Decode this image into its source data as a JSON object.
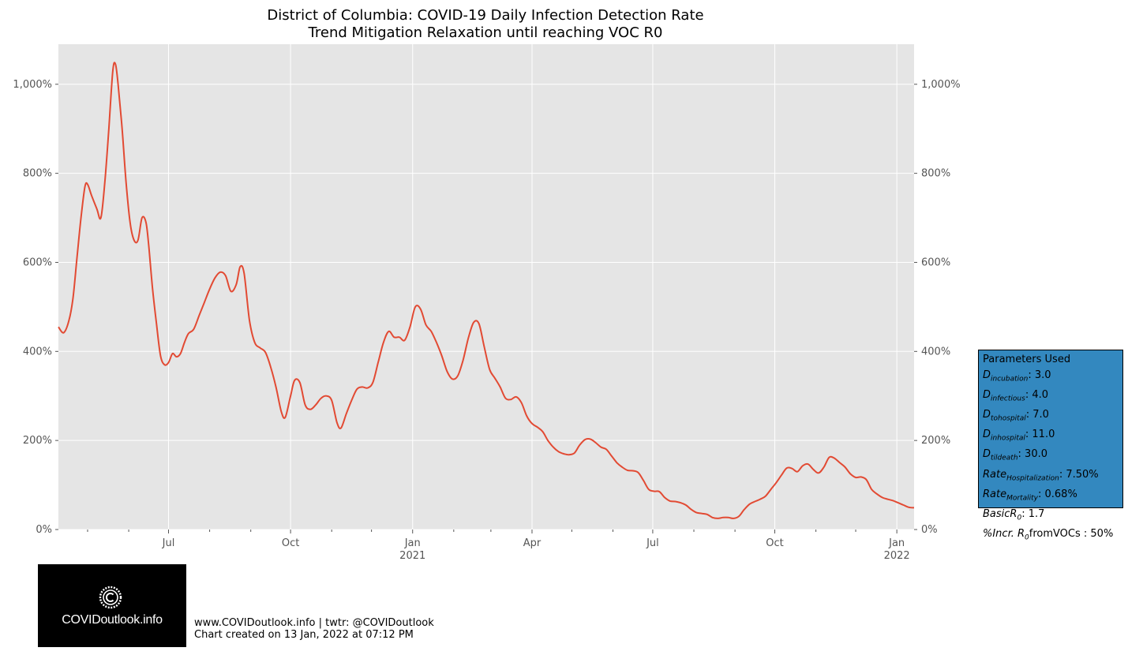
{
  "chart_data": {
    "type": "line",
    "title": "District of Columbia: COVID-19 Daily Infection Detection Rate",
    "subtitle": "Trend Mitigation Relaxation until reaching VOC R0",
    "xlabel": "",
    "ylabel": "",
    "ylim": [
      0,
      1090
    ],
    "xlim": [
      "2020-04-09",
      "2022-01-14"
    ],
    "grid": true,
    "y_ticks": [
      0,
      200,
      400,
      600,
      800,
      1000
    ],
    "y_tick_labels": [
      "0%",
      "200%",
      "400%",
      "600%",
      "800%",
      "1,000%"
    ],
    "x_ticks": [
      {
        "date": "2020-07-01",
        "label": "Jul",
        "sub": ""
      },
      {
        "date": "2020-10-01",
        "label": "Oct",
        "sub": ""
      },
      {
        "date": "2021-01-01",
        "label": "Jan",
        "sub": "2021"
      },
      {
        "date": "2021-04-01",
        "label": "Apr",
        "sub": ""
      },
      {
        "date": "2021-07-01",
        "label": "Jul",
        "sub": ""
      },
      {
        "date": "2021-10-01",
        "label": "Oct",
        "sub": ""
      },
      {
        "date": "2022-01-01",
        "label": "Jan",
        "sub": "2022"
      }
    ],
    "minor_ticks": [
      "2020-05-01",
      "2020-06-01",
      "2020-08-01",
      "2020-09-01",
      "2020-11-01",
      "2020-12-01",
      "2021-02-01",
      "2021-03-01",
      "2021-05-01",
      "2021-06-01",
      "2021-08-01",
      "2021-09-01",
      "2021-11-01",
      "2021-12-01"
    ],
    "series": [
      {
        "color": "#e24a33",
        "points": [
          [
            "2020-04-09",
            455
          ],
          [
            "2020-04-13",
            442
          ],
          [
            "2020-04-17",
            470
          ],
          [
            "2020-04-20",
            520
          ],
          [
            "2020-04-23",
            610
          ],
          [
            "2020-04-26",
            700
          ],
          [
            "2020-04-29",
            770
          ],
          [
            "2020-05-01",
            775
          ],
          [
            "2020-05-04",
            750
          ],
          [
            "2020-05-08",
            720
          ],
          [
            "2020-05-11",
            700
          ],
          [
            "2020-05-14",
            780
          ],
          [
            "2020-05-17",
            900
          ],
          [
            "2020-05-20",
            1030
          ],
          [
            "2020-05-22",
            1045
          ],
          [
            "2020-05-24",
            1000
          ],
          [
            "2020-05-27",
            900
          ],
          [
            "2020-05-30",
            780
          ],
          [
            "2020-06-02",
            690
          ],
          [
            "2020-06-05",
            650
          ],
          [
            "2020-06-08",
            650
          ],
          [
            "2020-06-11",
            700
          ],
          [
            "2020-06-14",
            690
          ],
          [
            "2020-06-16",
            640
          ],
          [
            "2020-06-19",
            540
          ],
          [
            "2020-06-22",
            460
          ],
          [
            "2020-06-25",
            390
          ],
          [
            "2020-06-28",
            370
          ],
          [
            "2020-07-01",
            375
          ],
          [
            "2020-07-04",
            395
          ],
          [
            "2020-07-07",
            388
          ],
          [
            "2020-07-10",
            395
          ],
          [
            "2020-07-13",
            420
          ],
          [
            "2020-07-16",
            440
          ],
          [
            "2020-07-20",
            450
          ],
          [
            "2020-07-24",
            480
          ],
          [
            "2020-07-28",
            510
          ],
          [
            "2020-08-01",
            540
          ],
          [
            "2020-08-05",
            565
          ],
          [
            "2020-08-09",
            578
          ],
          [
            "2020-08-13",
            570
          ],
          [
            "2020-08-17",
            535
          ],
          [
            "2020-08-21",
            550
          ],
          [
            "2020-08-24",
            590
          ],
          [
            "2020-08-27",
            575
          ],
          [
            "2020-08-31",
            470
          ],
          [
            "2020-09-04",
            420
          ],
          [
            "2020-09-08",
            408
          ],
          [
            "2020-09-12",
            398
          ],
          [
            "2020-09-16",
            365
          ],
          [
            "2020-09-20",
            320
          ],
          [
            "2020-09-24",
            265
          ],
          [
            "2020-09-27",
            252
          ],
          [
            "2020-10-01",
            300
          ],
          [
            "2020-10-04",
            335
          ],
          [
            "2020-10-08",
            330
          ],
          [
            "2020-10-12",
            280
          ],
          [
            "2020-10-16",
            270
          ],
          [
            "2020-10-20",
            280
          ],
          [
            "2020-10-24",
            295
          ],
          [
            "2020-10-28",
            300
          ],
          [
            "2020-11-01",
            290
          ],
          [
            "2020-11-05",
            240
          ],
          [
            "2020-11-08",
            228
          ],
          [
            "2020-11-12",
            260
          ],
          [
            "2020-11-16",
            290
          ],
          [
            "2020-11-20",
            315
          ],
          [
            "2020-11-24",
            320
          ],
          [
            "2020-11-28",
            318
          ],
          [
            "2020-12-02",
            330
          ],
          [
            "2020-12-06",
            375
          ],
          [
            "2020-12-10",
            420
          ],
          [
            "2020-12-14",
            445
          ],
          [
            "2020-12-18",
            432
          ],
          [
            "2020-12-22",
            432
          ],
          [
            "2020-12-26",
            425
          ],
          [
            "2020-12-30",
            455
          ],
          [
            "2021-01-03",
            500
          ],
          [
            "2021-01-07",
            495
          ],
          [
            "2021-01-11",
            460
          ],
          [
            "2021-01-15",
            445
          ],
          [
            "2021-01-19",
            420
          ],
          [
            "2021-01-23",
            390
          ],
          [
            "2021-01-27",
            355
          ],
          [
            "2021-01-31",
            338
          ],
          [
            "2021-02-04",
            345
          ],
          [
            "2021-02-08",
            380
          ],
          [
            "2021-02-12",
            430
          ],
          [
            "2021-02-16",
            465
          ],
          [
            "2021-02-20",
            462
          ],
          [
            "2021-02-24",
            410
          ],
          [
            "2021-02-28",
            360
          ],
          [
            "2021-03-04",
            340
          ],
          [
            "2021-03-08",
            320
          ],
          [
            "2021-03-12",
            295
          ],
          [
            "2021-03-16",
            292
          ],
          [
            "2021-03-20",
            298
          ],
          [
            "2021-03-24",
            285
          ],
          [
            "2021-03-28",
            255
          ],
          [
            "2021-04-01",
            238
          ],
          [
            "2021-04-05",
            230
          ],
          [
            "2021-04-09",
            220
          ],
          [
            "2021-04-13",
            200
          ],
          [
            "2021-04-17",
            185
          ],
          [
            "2021-04-21",
            175
          ],
          [
            "2021-04-25",
            170
          ],
          [
            "2021-04-29",
            168
          ],
          [
            "2021-05-03",
            172
          ],
          [
            "2021-05-07",
            190
          ],
          [
            "2021-05-11",
            202
          ],
          [
            "2021-05-15",
            203
          ],
          [
            "2021-05-19",
            195
          ],
          [
            "2021-05-23",
            185
          ],
          [
            "2021-05-27",
            180
          ],
          [
            "2021-05-31",
            165
          ],
          [
            "2021-06-04",
            150
          ],
          [
            "2021-06-08",
            140
          ],
          [
            "2021-06-12",
            133
          ],
          [
            "2021-06-16",
            132
          ],
          [
            "2021-06-20",
            128
          ],
          [
            "2021-06-24",
            110
          ],
          [
            "2021-06-28",
            90
          ],
          [
            "2021-07-02",
            86
          ],
          [
            "2021-07-06",
            85
          ],
          [
            "2021-07-10",
            72
          ],
          [
            "2021-07-14",
            64
          ],
          [
            "2021-07-18",
            63
          ],
          [
            "2021-07-22",
            60
          ],
          [
            "2021-07-26",
            55
          ],
          [
            "2021-07-30",
            45
          ],
          [
            "2021-08-03",
            38
          ],
          [
            "2021-08-07",
            36
          ],
          [
            "2021-08-11",
            34
          ],
          [
            "2021-08-15",
            27
          ],
          [
            "2021-08-19",
            25
          ],
          [
            "2021-08-23",
            27
          ],
          [
            "2021-08-27",
            27
          ],
          [
            "2021-08-31",
            25
          ],
          [
            "2021-09-04",
            30
          ],
          [
            "2021-09-08",
            45
          ],
          [
            "2021-09-12",
            57
          ],
          [
            "2021-09-16",
            63
          ],
          [
            "2021-09-20",
            68
          ],
          [
            "2021-09-24",
            75
          ],
          [
            "2021-09-28",
            90
          ],
          [
            "2021-10-02",
            105
          ],
          [
            "2021-10-06",
            122
          ],
          [
            "2021-10-10",
            138
          ],
          [
            "2021-10-14",
            137
          ],
          [
            "2021-10-18",
            130
          ],
          [
            "2021-10-22",
            143
          ],
          [
            "2021-10-26",
            147
          ],
          [
            "2021-10-30",
            135
          ],
          [
            "2021-11-03",
            127
          ],
          [
            "2021-11-07",
            140
          ],
          [
            "2021-11-11",
            162
          ],
          [
            "2021-11-15",
            160
          ],
          [
            "2021-11-19",
            150
          ],
          [
            "2021-11-23",
            140
          ],
          [
            "2021-11-27",
            125
          ],
          [
            "2021-12-01",
            117
          ],
          [
            "2021-12-05",
            118
          ],
          [
            "2021-12-09",
            112
          ],
          [
            "2021-12-13",
            90
          ],
          [
            "2021-12-17",
            80
          ],
          [
            "2021-12-21",
            72
          ],
          [
            "2021-12-25",
            68
          ],
          [
            "2021-12-29",
            65
          ],
          [
            "2022-01-02",
            60
          ],
          [
            "2022-01-06",
            55
          ],
          [
            "2022-01-10",
            50
          ],
          [
            "2022-01-14",
            49
          ]
        ]
      }
    ]
  },
  "params": {
    "title": "Parameters Used",
    "rows": [
      {
        "sym": "D",
        "sub": "incubation",
        "value": ": 3.0"
      },
      {
        "sym": "D",
        "sub": "infectious",
        "value": ": 4.0"
      },
      {
        "sym": "D",
        "sub": "tohospital",
        "value": ": 7.0"
      },
      {
        "sym": "D",
        "sub": "inhospital",
        "value": ": 11.0"
      },
      {
        "sym": "D",
        "sub": "tildeath",
        "value": ": 30.0"
      },
      {
        "sym": "Rate",
        "sub": "Hospitalization",
        "value": ": 7.50%"
      },
      {
        "sym": "Rate",
        "sub": "Mortality",
        "value": ": 0.68%"
      },
      {
        "sym": "BasicR",
        "sub": "0",
        "value": ": 1.7"
      },
      {
        "sym": "%Incr. R",
        "sub": "0",
        "value": "fromVOCs : 50%"
      }
    ]
  },
  "logo": {
    "text": "COVIDoutlook.info"
  },
  "footer": {
    "line1": "www.COVIDoutlook.info | twtr: @COVIDoutlook",
    "line2": "Chart created on 13 Jan, 2022 at 07:12 PM"
  }
}
